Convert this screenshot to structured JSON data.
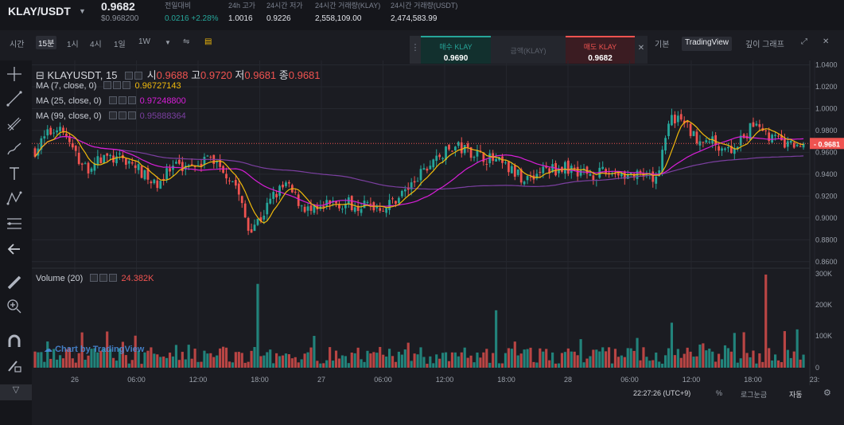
{
  "header": {
    "pair": "KLAY/USDT",
    "last_price": "0.9682",
    "last_usd": "$0.968200",
    "stats": [
      {
        "label": "전일대비",
        "value": "0.0216 +2.28%"
      },
      {
        "label": "24h 고가",
        "value": "1.0016"
      },
      {
        "label": "24시간 저가",
        "value": "0.9226"
      },
      {
        "label": "24시간 거래량(KLAY)",
        "value": "2,558,109.00"
      },
      {
        "label": "24시간 거래량(USDT)",
        "value": "2,474,583.99"
      }
    ]
  },
  "toolbar": {
    "time_label": "시간",
    "intervals": [
      "15분",
      "1시",
      "4시",
      "1일",
      "1W"
    ],
    "active_interval": "15분",
    "view_basic": "기본",
    "view_tradingview": "TradingView",
    "view_depth": "깊이 그래프"
  },
  "trade_panel": {
    "buy_label": "매수 KLAY",
    "buy_price": "0.9690",
    "amount_placeholder": "금액(KLAY)",
    "sell_label": "매도 KLAY",
    "sell_price": "0.9682"
  },
  "legend": {
    "symbol": "KLAYUSDT, 15",
    "o_label": "시",
    "o": "0.9688",
    "h_label": "고",
    "h": "0.9720",
    "l_label": "저",
    "l": "0.9681",
    "c_label": "종",
    "c": "0.9681",
    "ma7_label": "MA (7, close, 0)",
    "ma7_value": "0.96727143",
    "ma25_label": "MA (25, close, 0)",
    "ma25_value": "0.97248800",
    "ma99_label": "MA (99, close, 0)",
    "ma99_value": "0.95888364",
    "volume_label": "Volume (20)",
    "volume_value": "24.382K"
  },
  "watermark": "Chart by TradingView",
  "footer": {
    "time": "22:27:26 (UTC+9)",
    "percent": "%",
    "log": "로그눈금",
    "auto": "자동"
  },
  "colors": {
    "up": "#26a69a",
    "down": "#ef5350",
    "ma7": "#f0b90b",
    "ma25": "#d81ed8",
    "ma99": "#7b3fa0",
    "bg": "#1b1c22"
  },
  "chart_data": [
    {
      "type": "candlestick",
      "symbol": "KLAYUSDT",
      "interval": "15",
      "price_axis_labels": [
        "1.0400",
        "1.0200",
        "1.0000",
        "0.9800",
        "0.9600",
        "0.9400",
        "0.9200",
        "0.9000",
        "0.8800",
        "0.8600"
      ],
      "current_price_label": "0.9681",
      "ylim": [
        0.854,
        1.044
      ],
      "time_axis_labels": [
        "26",
        "06:00",
        "12:00",
        "18:00",
        "27",
        "06:00",
        "12:00",
        "18:00",
        "28",
        "06:00",
        "12:00",
        "18:00",
        "23:"
      ],
      "close_path": [
        [
          0,
          0.962
        ],
        [
          4,
          0.976
        ],
        [
          8,
          0.985
        ],
        [
          12,
          0.962
        ],
        [
          16,
          0.945
        ],
        [
          22,
          0.955
        ],
        [
          30,
          0.952
        ],
        [
          38,
          0.93
        ],
        [
          44,
          0.945
        ],
        [
          50,
          0.95
        ],
        [
          56,
          0.955
        ],
        [
          60,
          0.945
        ],
        [
          64,
          0.93
        ],
        [
          68,
          0.89
        ],
        [
          72,
          0.9
        ],
        [
          76,
          0.92
        ],
        [
          80,
          0.93
        ],
        [
          84,
          0.915
        ],
        [
          88,
          0.905
        ],
        [
          96,
          0.914
        ],
        [
          104,
          0.912
        ],
        [
          112,
          0.91
        ],
        [
          120,
          0.93
        ],
        [
          128,
          0.955
        ],
        [
          134,
          0.965
        ],
        [
          140,
          0.96
        ],
        [
          148,
          0.95
        ],
        [
          156,
          0.935
        ],
        [
          162,
          0.944
        ],
        [
          170,
          0.946
        ],
        [
          178,
          0.94
        ],
        [
          186,
          0.942
        ],
        [
          194,
          0.936
        ],
        [
          198,
          0.934
        ],
        [
          202,
          0.99
        ],
        [
          206,
          0.99
        ],
        [
          210,
          0.975
        ],
        [
          216,
          0.97
        ],
        [
          222,
          0.962
        ],
        [
          226,
          0.972
        ],
        [
          230,
          0.99
        ],
        [
          234,
          0.975
        ],
        [
          240,
          0.966
        ],
        [
          245,
          0.968
        ]
      ]
    },
    {
      "type": "bar",
      "title": "Volume (20)",
      "y_axis_labels": [
        "300K",
        "200K",
        "100K",
        "0"
      ],
      "ylim": [
        0,
        300000
      ],
      "value_label": "24.382K",
      "approx_peak_values": [
        {
          "x": 71,
          "value": 270000
        },
        {
          "x": 147,
          "value": 185000
        },
        {
          "x": 203,
          "value": 145000
        },
        {
          "x": 233,
          "value": 300000
        }
      ]
    }
  ]
}
